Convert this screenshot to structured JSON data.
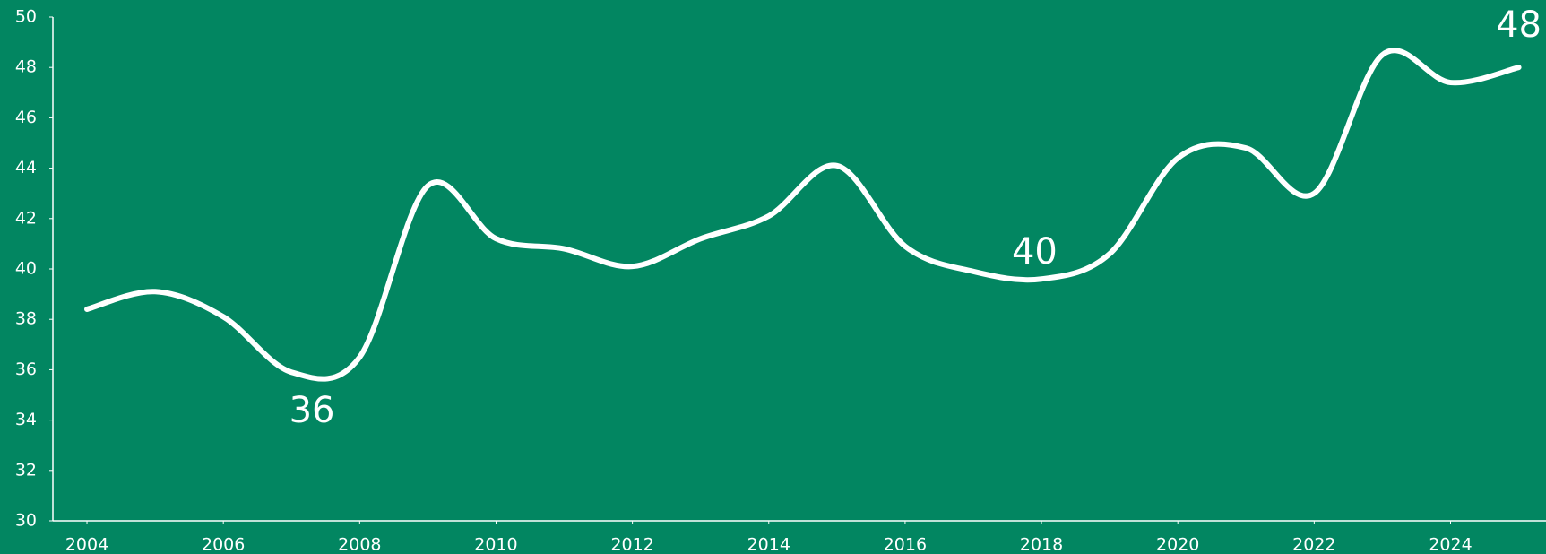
{
  "chart_data": {
    "type": "line",
    "x": [
      2004,
      2005,
      2006,
      2007,
      2008,
      2009,
      2010,
      2011,
      2012,
      2013,
      2014,
      2015,
      2016,
      2017,
      2018,
      2019,
      2020,
      2021,
      2022,
      2023,
      2024,
      2025
    ],
    "series": [
      {
        "color": "#ffffff",
        "values": [
          38.4,
          39.1,
          38.1,
          35.9,
          36.5,
          43.3,
          41.2,
          40.8,
          40.1,
          41.2,
          42.1,
          44.1,
          40.9,
          39.9,
          39.6,
          40.6,
          44.4,
          44.8,
          43.0,
          48.5,
          47.4,
          48.0
        ]
      }
    ],
    "xlim": [
      2003.5,
      2025.4
    ],
    "xticks": [
      2004,
      2006,
      2008,
      2010,
      2012,
      2014,
      2016,
      2018,
      2020,
      2022,
      2024
    ],
    "ylim": [
      30,
      50
    ],
    "yticks": [
      30,
      32,
      34,
      36,
      38,
      40,
      42,
      44,
      46,
      48,
      50
    ],
    "grid": false,
    "annotations": [
      {
        "text": "36",
        "x": 2007.3,
        "y": 34.3
      },
      {
        "text": "40",
        "x": 2017.9,
        "y": 40.6
      },
      {
        "text": "48",
        "x": 2025,
        "y": 49.6
      }
    ]
  }
}
